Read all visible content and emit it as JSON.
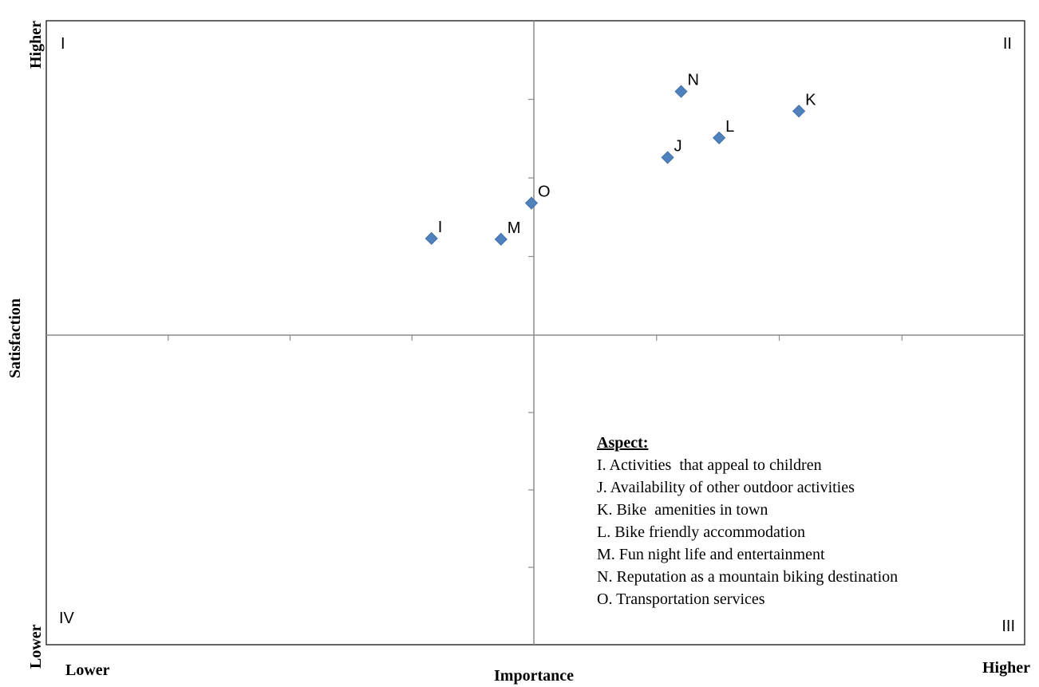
{
  "chart_data": {
    "type": "scatter",
    "xlabel": "Importance",
    "ylabel": "Satisfaction",
    "x_low_label": "Lower",
    "x_high_label": "Higher",
    "y_low_label": "Lower",
    "y_high_label": "Higher",
    "xlim": [
      -4,
      4
    ],
    "ylim": [
      -4,
      4
    ],
    "grid": false,
    "quadrants": {
      "top_left": "I",
      "top_right": "II",
      "bottom_right": "III",
      "bottom_left": "IV"
    },
    "points": [
      {
        "label": "I",
        "x": -0.84,
        "y": 1.23
      },
      {
        "label": "J",
        "x": 1.09,
        "y": 2.26
      },
      {
        "label": "K",
        "x": 2.16,
        "y": 2.85
      },
      {
        "label": "L",
        "x": 1.51,
        "y": 2.51
      },
      {
        "label": "M",
        "x": -0.27,
        "y": 1.22
      },
      {
        "label": "N",
        "x": 1.2,
        "y": 3.1
      },
      {
        "label": "O",
        "x": -0.02,
        "y": 1.68
      }
    ],
    "point_color": "#4f81bd",
    "legend": {
      "title": "Aspect:",
      "placement": "bottom-right",
      "items": [
        "I. Activities  that appeal to children",
        "J. Availability of other outdoor activities",
        "K. Bike  amenities in town",
        "L. Bike friendly accommodation",
        "M. Fun night life and entertainment",
        "N. Reputation as a mountain biking destination",
        "O. Transportation services"
      ]
    }
  }
}
